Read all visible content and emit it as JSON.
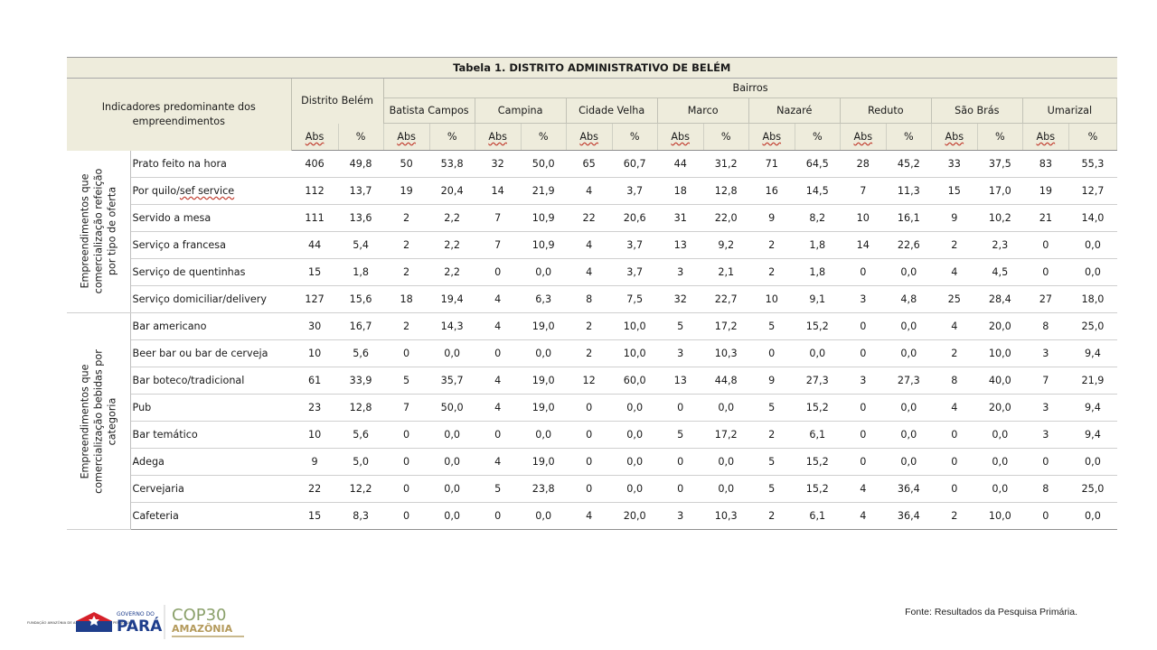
{
  "title": "Tabela 1. DISTRITO ADMINISTRATIVO DE BELÉM",
  "header": {
    "indicadores": "Indicadores predominante dos empreendimentos",
    "distrito": "Distrito Belém",
    "bairros_label": "Bairros",
    "bairros": [
      "Batista Campos",
      "Campina",
      "Cidade Velha",
      "Marco",
      "Nazaré",
      "Reduto",
      "São Brás",
      "Umarizal"
    ],
    "abs": "Abs",
    "pct": "%"
  },
  "groups": [
    {
      "label": "Empreendimentos que comercialização refeição por tipo de oferta",
      "rows": [
        {
          "label": "Prato feito na hora",
          "values": [
            "406",
            "49,8",
            "50",
            "53,8",
            "32",
            "50,0",
            "65",
            "60,7",
            "44",
            "31,2",
            "71",
            "64,5",
            "28",
            "45,2",
            "33",
            "37,5",
            "83",
            "55,3"
          ]
        },
        {
          "label_parts": [
            "Por quilo/",
            "sef service"
          ],
          "values": [
            "112",
            "13,7",
            "19",
            "20,4",
            "14",
            "21,9",
            "4",
            "3,7",
            "18",
            "12,8",
            "16",
            "14,5",
            "7",
            "11,3",
            "15",
            "17,0",
            "19",
            "12,7"
          ]
        },
        {
          "label": "Servido a mesa",
          "values": [
            "111",
            "13,6",
            "2",
            "2,2",
            "7",
            "10,9",
            "22",
            "20,6",
            "31",
            "22,0",
            "9",
            "8,2",
            "10",
            "16,1",
            "9",
            "10,2",
            "21",
            "14,0"
          ]
        },
        {
          "label": "Serviço a francesa",
          "values": [
            "44",
            "5,4",
            "2",
            "2,2",
            "7",
            "10,9",
            "4",
            "3,7",
            "13",
            "9,2",
            "2",
            "1,8",
            "14",
            "22,6",
            "2",
            "2,3",
            "0",
            "0,0"
          ]
        },
        {
          "label": "Serviço de quentinhas",
          "values": [
            "15",
            "1,8",
            "2",
            "2,2",
            "0",
            "0,0",
            "4",
            "3,7",
            "3",
            "2,1",
            "2",
            "1,8",
            "0",
            "0,0",
            "4",
            "4,5",
            "0",
            "0,0"
          ]
        },
        {
          "label": "Serviço domiciliar/delivery",
          "values": [
            "127",
            "15,6",
            "18",
            "19,4",
            "4",
            "6,3",
            "8",
            "7,5",
            "32",
            "22,7",
            "10",
            "9,1",
            "3",
            "4,8",
            "25",
            "28,4",
            "27",
            "18,0"
          ]
        }
      ]
    },
    {
      "label": "Empreendimentos que comercialização bebidas por categoria",
      "rows": [
        {
          "label": "Bar americano",
          "values": [
            "30",
            "16,7",
            "2",
            "14,3",
            "4",
            "19,0",
            "2",
            "10,0",
            "5",
            "17,2",
            "5",
            "15,2",
            "0",
            "0,0",
            "4",
            "20,0",
            "8",
            "25,0"
          ]
        },
        {
          "label": "Beer bar ou bar de cerveja",
          "values": [
            "10",
            "5,6",
            "0",
            "0,0",
            "0",
            "0,0",
            "2",
            "10,0",
            "3",
            "10,3",
            "0",
            "0,0",
            "0",
            "0,0",
            "2",
            "10,0",
            "3",
            "9,4"
          ]
        },
        {
          "label": "Bar boteco/tradicional",
          "values": [
            "61",
            "33,9",
            "5",
            "35,7",
            "4",
            "19,0",
            "12",
            "60,0",
            "13",
            "44,8",
            "9",
            "27,3",
            "3",
            "27,3",
            "8",
            "40,0",
            "7",
            "21,9"
          ]
        },
        {
          "label": "Pub",
          "values": [
            "23",
            "12,8",
            "7",
            "50,0",
            "4",
            "19,0",
            "0",
            "0,0",
            "0",
            "0,0",
            "5",
            "15,2",
            "0",
            "0,0",
            "4",
            "20,0",
            "3",
            "9,4"
          ]
        },
        {
          "label": "Bar temático",
          "values": [
            "10",
            "5,6",
            "0",
            "0,0",
            "0",
            "0,0",
            "0",
            "0,0",
            "5",
            "17,2",
            "2",
            "6,1",
            "0",
            "0,0",
            "0",
            "0,0",
            "3",
            "9,4"
          ]
        },
        {
          "label": "Adega",
          "values": [
            "9",
            "5,0",
            "0",
            "0,0",
            "4",
            "19,0",
            "0",
            "0,0",
            "0",
            "0,0",
            "5",
            "15,2",
            "0",
            "0,0",
            "0",
            "0,0",
            "0",
            "0,0"
          ]
        },
        {
          "label": "Cervejaria",
          "values": [
            "22",
            "12,2",
            "0",
            "0,0",
            "5",
            "23,8",
            "0",
            "0,0",
            "0",
            "0,0",
            "5",
            "15,2",
            "4",
            "36,4",
            "0",
            "0,0",
            "8",
            "25,0"
          ]
        },
        {
          "label": "Cafeteria",
          "values": [
            "15",
            "8,3",
            "0",
            "0,0",
            "0",
            "0,0",
            "4",
            "20,0",
            "3",
            "10,3",
            "2",
            "6,1",
            "4",
            "36,4",
            "2",
            "10,0",
            "0",
            "0,0"
          ]
        }
      ]
    }
  ],
  "logos": {
    "fundacao": "FUNDAÇÃO AMAZÔNIA DE AMPARO A ESTUDOS E PESQUISAS",
    "governo": "GOVERNO DO",
    "para": "PARÁ",
    "cop": "COP30",
    "amazonia": "AMAZÔNIA"
  },
  "fonte": "Fonte: Resultados da Pesquisa Primária.",
  "colors": {
    "header_bg": "#eeecdc",
    "para_blue": "#1f3e8c",
    "para_red": "#d6212a",
    "cop_gold": "#b49a5b"
  }
}
